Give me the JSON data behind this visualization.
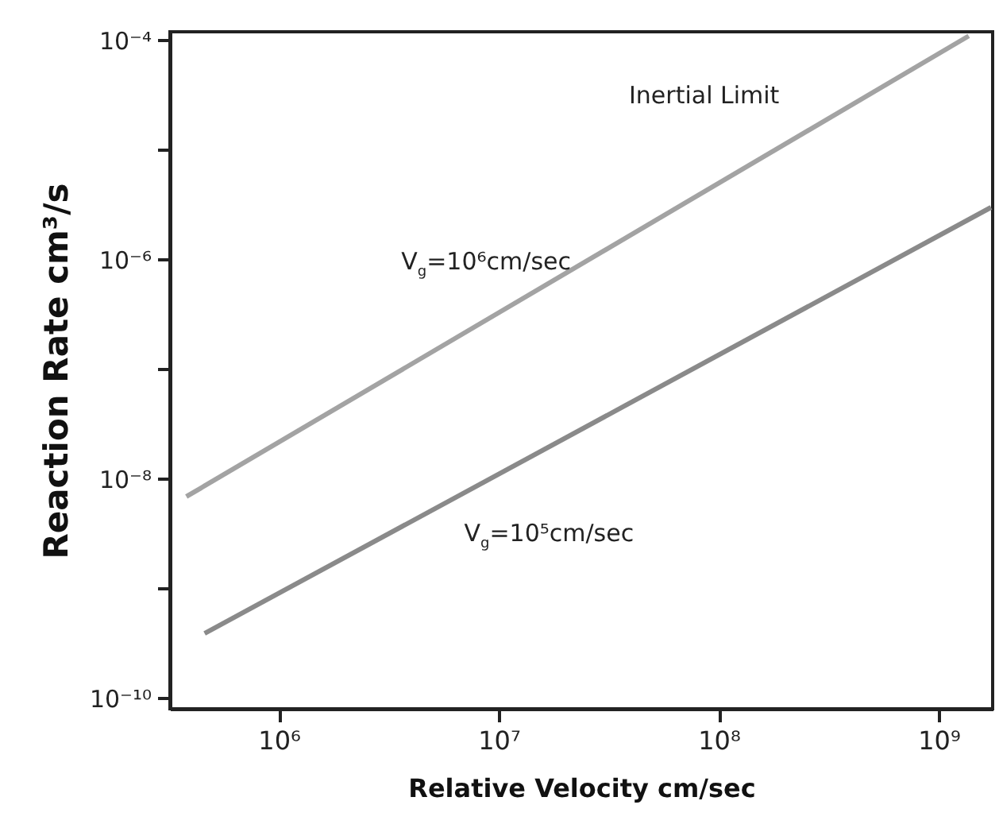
{
  "chart_data": {
    "type": "line",
    "xlabel": "Relative Velocity  cm/sec",
    "ylabel": "Reaction Rate  cm³/s",
    "log": "xy",
    "grid": false,
    "marker": "none",
    "line_style": "solid",
    "xlim": [
      320000,
      1760000000
    ],
    "ylim": [
      8e-11,
      0.00012
    ],
    "xticks": [
      {
        "value": 1000000,
        "label": "10⁶"
      },
      {
        "value": 10000000,
        "label": "10⁷"
      },
      {
        "value": 100000000,
        "label": "10⁸"
      },
      {
        "value": 1000000000,
        "label": "10⁹"
      }
    ],
    "yticks": [
      {
        "value": 1e-10,
        "label": "10⁻¹⁰"
      },
      {
        "value": 1e-09,
        "label": null
      },
      {
        "value": 1e-08,
        "label": "10⁻⁸"
      },
      {
        "value": 1e-07,
        "label": null
      },
      {
        "value": 1e-06,
        "label": "10⁻⁶"
      },
      {
        "value": 1e-05,
        "label": null
      },
      {
        "value": 0.0001,
        "label": "10⁻⁴"
      }
    ],
    "series": [
      {
        "name": "V$_{g}$=10⁶cm/sec",
        "color": "#a3a3a3",
        "x": [
          380000,
          1370000000
        ],
        "values": [
          6.9e-09,
          0.00011
        ]
      },
      {
        "name": "V$_{g}$=10⁵cm/sec",
        "color": "#8a8a8a",
        "x": [
          460000,
          1730000000
        ],
        "values": [
          3.9e-10,
          3e-06
        ]
      }
    ],
    "annotations": [
      "Inertial Limit"
    ]
  }
}
